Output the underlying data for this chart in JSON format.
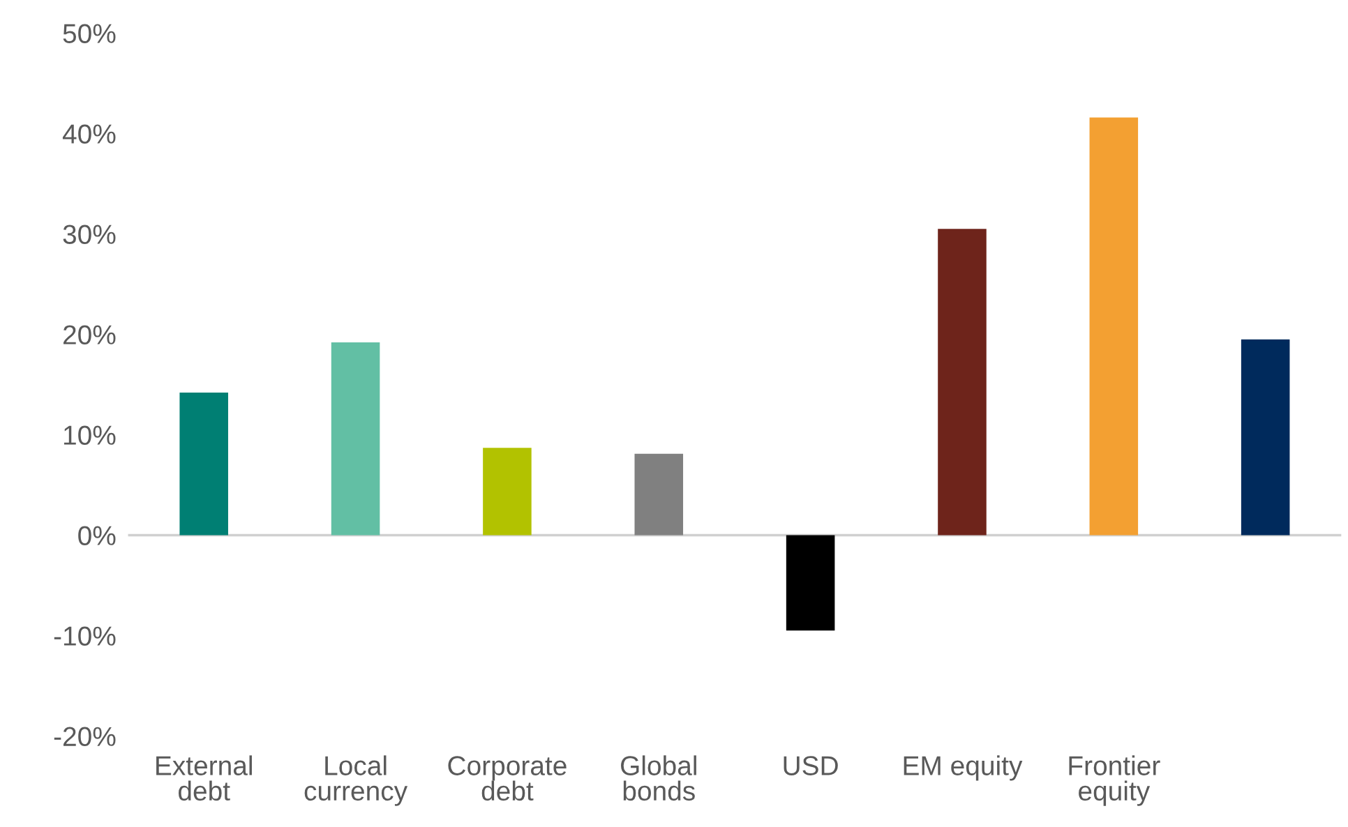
{
  "chart_data": {
    "type": "bar",
    "categories": [
      "External\ndebt",
      "Local\ncurrency",
      "Corporate\ndebt",
      "Global\nbonds",
      "USD",
      "EM equity",
      "Frontier\nequity",
      null
    ],
    "values": [
      14.2,
      19.2,
      8.7,
      8.1,
      -9.5,
      30.5,
      41.6,
      19.5
    ],
    "colors": [
      "#007f73",
      "#62bfa4",
      "#b2c200",
      "#808080",
      "#000000",
      "#6e241b",
      "#f3a032",
      "#002a5c"
    ],
    "ylim": [
      -20,
      50
    ],
    "yticks": [
      {
        "value": -20,
        "label": "-20%"
      },
      {
        "value": -10,
        "label": "-10%"
      },
      {
        "value": 0,
        "label": "0%"
      },
      {
        "value": 10,
        "label": "10%"
      },
      {
        "value": 20,
        "label": "20%"
      },
      {
        "value": 30,
        "label": "30%"
      },
      {
        "value": 40,
        "label": "40%"
      },
      {
        "value": 50,
        "label": "50%"
      }
    ],
    "ref_lines": [
      {
        "axis": "y",
        "value": 0,
        "color": "#d0d0d0"
      }
    ],
    "legend": false
  }
}
